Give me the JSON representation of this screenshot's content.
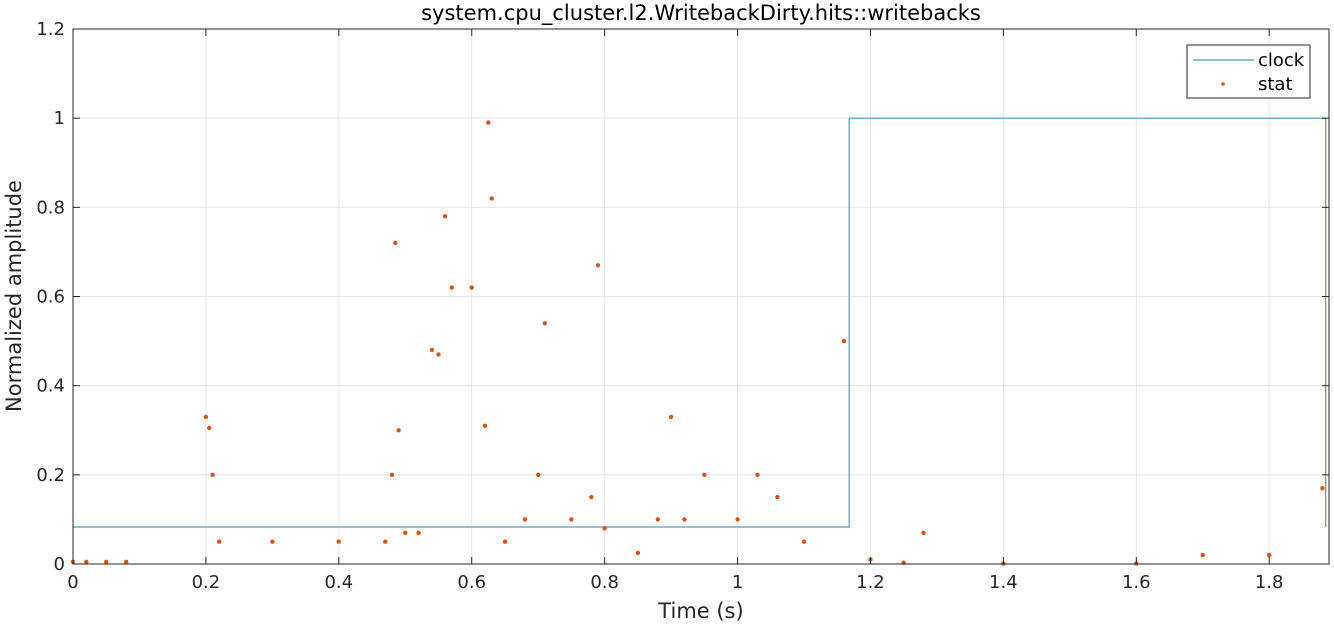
{
  "chart_data": {
    "type": "line",
    "title": "system.cpu_cluster.l2.WritebackDirty.hits::writebacks",
    "xlabel": "Time (s)",
    "ylabel": "Normalized amplitude",
    "xlim": [
      0,
      1.89
    ],
    "ylim": [
      0,
      1.2
    ],
    "xticks": [
      0,
      0.2,
      0.4,
      0.6,
      0.8,
      1,
      1.2,
      1.4,
      1.6,
      1.8
    ],
    "xtick_labels": [
      "0",
      "0.2",
      "0.4",
      "0.6",
      "0.8",
      "1",
      "1.2",
      "1.4",
      "1.6",
      "1.8"
    ],
    "yticks": [
      0,
      0.2,
      0.4,
      0.6,
      0.8,
      1,
      1.2
    ],
    "ytick_labels": [
      "0",
      "0.2",
      "0.4",
      "0.6",
      "0.8",
      "1",
      "1.2"
    ],
    "grid": true,
    "legend_position": "top-right",
    "series": [
      {
        "name": "clock",
        "style": "line",
        "color": "#4a9cc4",
        "x": [
          0,
          1.168,
          1.168,
          1.885,
          1.885
        ],
        "y": [
          0.083,
          0.083,
          1,
          1,
          0.083
        ]
      },
      {
        "name": "stat",
        "style": "scatter",
        "color": "#d95319",
        "x": [
          0.0,
          0.02,
          0.05,
          0.08,
          0.2,
          0.205,
          0.21,
          0.22,
          0.3,
          0.4,
          0.47,
          0.48,
          0.485,
          0.49,
          0.5,
          0.52,
          0.54,
          0.55,
          0.56,
          0.57,
          0.6,
          0.62,
          0.625,
          0.63,
          0.65,
          0.68,
          0.7,
          0.71,
          0.75,
          0.78,
          0.79,
          0.8,
          0.85,
          0.88,
          0.9,
          0.92,
          0.95,
          1.0,
          1.03,
          1.06,
          1.1,
          1.16,
          1.2,
          1.25,
          1.28,
          1.4,
          1.6,
          1.7,
          1.8,
          1.88
        ],
        "y": [
          0.005,
          0.005,
          0.005,
          0.005,
          0.33,
          0.305,
          0.2,
          0.05,
          0.05,
          0.05,
          0.05,
          0.2,
          0.72,
          0.3,
          0.07,
          0.07,
          0.48,
          0.47,
          0.78,
          0.62,
          0.62,
          0.31,
          0.99,
          0.82,
          0.05,
          0.1,
          0.2,
          0.54,
          0.1,
          0.15,
          0.67,
          0.08,
          0.025,
          0.1,
          0.33,
          0.1,
          0.2,
          0.1,
          0.2,
          0.15,
          0.05,
          0.5,
          0.01,
          0.003,
          0.07,
          0.001,
          0.001,
          0.02,
          0.02,
          0.17
        ]
      }
    ]
  }
}
